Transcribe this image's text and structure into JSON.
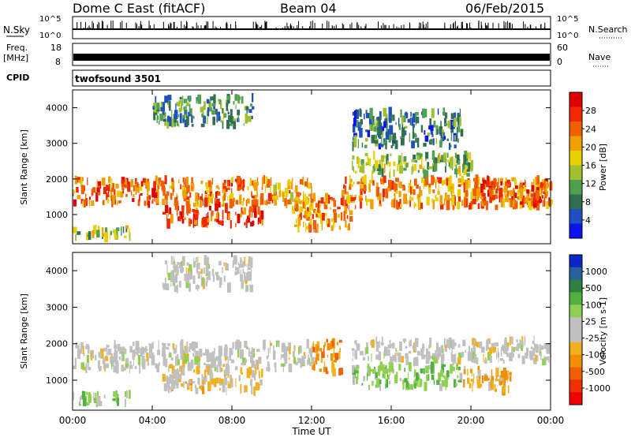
{
  "header": {
    "station": "Dome C East (fitACF)",
    "beam": "Beam 04",
    "date": "06/Feb/2015"
  },
  "nsky_panel": {
    "label": "N.Sky",
    "right_label": "N.Search",
    "ticks_left": [
      "10^5",
      "10^0"
    ],
    "ticks_right": [
      "10^5",
      "10^0"
    ]
  },
  "freq_panel": {
    "label_line1": "Freq.",
    "label_line2": "[MHz]",
    "ticks_left": [
      "18",
      "8"
    ],
    "ticks_right": [
      "60",
      "0"
    ],
    "right_label": "Nave"
  },
  "cpid": {
    "label": "CPID",
    "value": "twofsound 3501"
  },
  "x_axis": {
    "label": "Time UT",
    "ticks": [
      "00:00",
      "04:00",
      "08:00",
      "12:00",
      "16:00",
      "20:00",
      "00:00"
    ]
  },
  "chart_data": [
    {
      "type": "heatmap",
      "name": "power-panel",
      "ylabel": "Slant Range [km]",
      "xlabel": "Time UT",
      "xlim_hours": [
        0,
        24
      ],
      "ylim_km": [
        180,
        4500
      ],
      "yticks": [
        1000,
        2000,
        3000,
        4000
      ],
      "colorbar": {
        "label": "Power [dB]",
        "range": [
          0,
          32
        ],
        "ticks": [
          "4",
          "8",
          "12",
          "16",
          "20",
          "24",
          "28"
        ],
        "colors": [
          "#0a14f0",
          "#2050c0",
          "#307050",
          "#50a050",
          "#a0c030",
          "#e8d000",
          "#f0a000",
          "#f06000",
          "#f02800",
          "#e00000"
        ]
      },
      "echo_regions": [
        {
          "t0": 0.0,
          "t1": 8.5,
          "r0": 1250,
          "r1": 2000,
          "power": 24
        },
        {
          "t0": 8.5,
          "t1": 12.0,
          "r0": 1300,
          "r1": 2000,
          "power": 20
        },
        {
          "t0": 13.5,
          "t1": 24.0,
          "r0": 1200,
          "r1": 2000,
          "power": 22
        },
        {
          "t0": 4.5,
          "t1": 9.5,
          "r0": 700,
          "r1": 1200,
          "power": 26
        },
        {
          "t0": 11.0,
          "t1": 14.0,
          "r0": 600,
          "r1": 1500,
          "power": 22
        },
        {
          "t0": 0.0,
          "t1": 3.0,
          "r0": 350,
          "r1": 650,
          "power": 14
        },
        {
          "t0": 14.0,
          "t1": 20.0,
          "r0": 2100,
          "r1": 2700,
          "power": 14
        },
        {
          "t0": 4.0,
          "t1": 9.0,
          "r0": 3500,
          "r1": 4300,
          "power": 10
        },
        {
          "t0": 14.0,
          "t1": 19.5,
          "r0": 2900,
          "r1": 3900,
          "power": 8
        },
        {
          "t0": 20.0,
          "t1": 24.0,
          "r0": 1300,
          "r1": 2000,
          "power": 26
        }
      ]
    },
    {
      "type": "heatmap",
      "name": "velocity-panel",
      "ylabel": "Slant Range [km]",
      "xlabel": "Time UT",
      "xlim_hours": [
        0,
        24
      ],
      "ylim_km": [
        180,
        4500
      ],
      "yticks": [
        1000,
        2000,
        3000,
        4000
      ],
      "colorbar": {
        "label": "Velocity [m s-1]",
        "range": [
          -1000,
          1000
        ],
        "ticks": [
          "1000",
          "500",
          "100",
          "25",
          "-25",
          "-100",
          "-500",
          "-1000"
        ],
        "colors": [
          "#0a28c8",
          "#2860a0",
          "#308040",
          "#50b040",
          "#90d050",
          "#c0c0c0",
          "#c0c0c0",
          "#f0b020",
          "#f09000",
          "#f06000",
          "#f03000",
          "#f00000"
        ]
      },
      "echo_regions": [
        {
          "t0": 0.0,
          "t1": 12.0,
          "r0": 1300,
          "r1": 2000,
          "velocity": 0
        },
        {
          "t0": 14.0,
          "t1": 24.0,
          "r0": 1500,
          "r1": 2100,
          "velocity": 0
        },
        {
          "t0": 4.5,
          "t1": 9.5,
          "r0": 700,
          "r1": 1300,
          "velocity": -150
        },
        {
          "t0": 14.0,
          "t1": 19.5,
          "r0": 800,
          "r1": 1400,
          "velocity": 300
        },
        {
          "t0": 19.5,
          "t1": 22.0,
          "r0": 700,
          "r1": 1300,
          "velocity": -300
        },
        {
          "t0": 0.0,
          "t1": 3.0,
          "r0": 350,
          "r1": 650,
          "velocity": 300
        },
        {
          "t0": 12.0,
          "t1": 13.5,
          "r0": 1200,
          "r1": 2100,
          "velocity": -400
        },
        {
          "t0": 4.5,
          "t1": 9.0,
          "r0": 3500,
          "r1": 4300,
          "velocity": 0
        }
      ]
    }
  ]
}
